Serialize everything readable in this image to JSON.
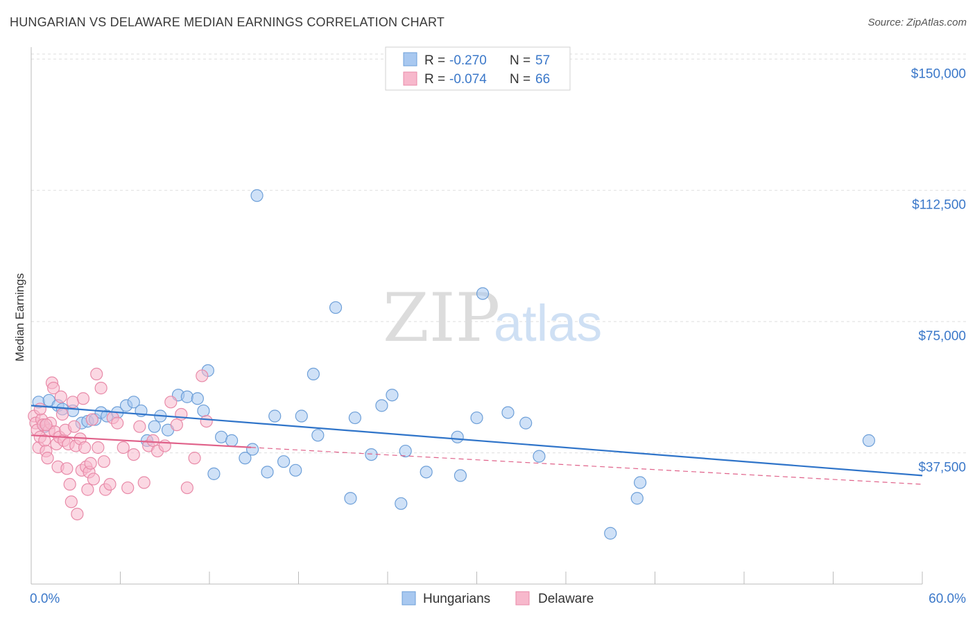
{
  "title": "HUNGARIAN VS DELAWARE MEDIAN EARNINGS CORRELATION CHART",
  "source": "Source: ZipAtlas.com",
  "watermark": {
    "zip": "ZIP",
    "atlas": "atlas"
  },
  "legend": {
    "items": [
      {
        "r_label": "R =",
        "r_value": "-0.270",
        "n_label": "N =",
        "n_value": "57",
        "color": "#a8c8f0",
        "stroke": "#6d9fd8"
      },
      {
        "r_label": "R =",
        "r_value": "-0.074",
        "n_label": "N =",
        "n_value": "66",
        "color": "#f7b8cc",
        "stroke": "#e88aa8"
      }
    ]
  },
  "bottom_legend": {
    "items": [
      {
        "label": "Hungarians"
      },
      {
        "label": "Delaware"
      }
    ]
  },
  "chart_data": {
    "type": "scatter",
    "title": "HUNGARIAN VS DELAWARE MEDIAN EARNINGS CORRELATION CHART",
    "xlabel": "",
    "ylabel": "Median Earnings",
    "xlim": [
      0,
      60
    ],
    "ylim": [
      0,
      155000
    ],
    "x_tick_labels": [
      "0.0%",
      "60.0%"
    ],
    "y_ticks": [
      37500,
      75000,
      112500,
      150000
    ],
    "y_tick_labels": [
      "$37,500",
      "$75,000",
      "$112,500",
      "$150,000"
    ],
    "grid": true,
    "series": [
      {
        "name": "Hungarians",
        "color": "#a8c8f0",
        "stroke": "#6d9fd8",
        "trend": {
          "x0": 0,
          "y0": 51000,
          "x1": 60,
          "y1": 31000,
          "color": "#2f74c9",
          "dashed_from": null
        },
        "points": [
          [
            0.5,
            52000
          ],
          [
            1.2,
            52500
          ],
          [
            1.8,
            51000
          ],
          [
            2.1,
            50000
          ],
          [
            2.8,
            49500
          ],
          [
            3.4,
            46000
          ],
          [
            3.8,
            46500
          ],
          [
            4.3,
            47000
          ],
          [
            4.7,
            49000
          ],
          [
            5.1,
            48000
          ],
          [
            5.8,
            49000
          ],
          [
            6.4,
            51000
          ],
          [
            6.9,
            52000
          ],
          [
            7.4,
            49500
          ],
          [
            7.8,
            41000
          ],
          [
            8.3,
            45000
          ],
          [
            8.7,
            48000
          ],
          [
            9.2,
            44000
          ],
          [
            9.9,
            54000
          ],
          [
            10.5,
            53500
          ],
          [
            11.2,
            53000
          ],
          [
            11.6,
            49500
          ],
          [
            11.9,
            61000
          ],
          [
            12.3,
            31500
          ],
          [
            12.8,
            42000
          ],
          [
            13.5,
            41000
          ],
          [
            14.4,
            36000
          ],
          [
            14.9,
            38500
          ],
          [
            15.2,
            111000
          ],
          [
            15.9,
            32000
          ],
          [
            16.4,
            48000
          ],
          [
            17.0,
            35000
          ],
          [
            17.8,
            32500
          ],
          [
            18.2,
            48000
          ],
          [
            19.0,
            60000
          ],
          [
            19.3,
            42500
          ],
          [
            20.5,
            79000
          ],
          [
            21.5,
            24500
          ],
          [
            21.8,
            47500
          ],
          [
            22.9,
            37000
          ],
          [
            23.6,
            51000
          ],
          [
            24.3,
            54000
          ],
          [
            24.9,
            23000
          ],
          [
            25.2,
            38000
          ],
          [
            26.6,
            32000
          ],
          [
            28.7,
            42000
          ],
          [
            28.9,
            31000
          ],
          [
            30.0,
            47500
          ],
          [
            30.4,
            83000
          ],
          [
            32.1,
            49000
          ],
          [
            33.3,
            46000
          ],
          [
            34.2,
            36500
          ],
          [
            39.0,
            14500
          ],
          [
            40.8,
            24500
          ],
          [
            41.0,
            29000
          ],
          [
            56.4,
            41000
          ],
          [
            0.9,
            45000
          ]
        ]
      },
      {
        "name": "Delaware",
        "color": "#f7b8cc",
        "stroke": "#e88aa8",
        "trend": {
          "x0": 0,
          "y0": 42500,
          "x1": 60,
          "y1": 28500,
          "color": "#e0628a",
          "solid_until": 14.8
        },
        "points": [
          [
            0.2,
            48000
          ],
          [
            0.3,
            46000
          ],
          [
            0.4,
            44000
          ],
          [
            0.5,
            39000
          ],
          [
            0.6,
            42000
          ],
          [
            0.7,
            47000
          ],
          [
            0.8,
            45500
          ],
          [
            0.9,
            41000
          ],
          [
            1.0,
            38000
          ],
          [
            1.1,
            36000
          ],
          [
            1.2,
            44000
          ],
          [
            1.3,
            46000
          ],
          [
            1.4,
            57500
          ],
          [
            1.5,
            56000
          ],
          [
            1.6,
            43500
          ],
          [
            1.7,
            40000
          ],
          [
            1.8,
            33500
          ],
          [
            1.9,
            42000
          ],
          [
            2.0,
            53500
          ],
          [
            2.1,
            48500
          ],
          [
            2.2,
            41000
          ],
          [
            2.3,
            44000
          ],
          [
            2.4,
            33000
          ],
          [
            2.5,
            40000
          ],
          [
            2.6,
            28500
          ],
          [
            2.7,
            23500
          ],
          [
            2.8,
            52000
          ],
          [
            2.9,
            45000
          ],
          [
            3.0,
            39500
          ],
          [
            3.1,
            20000
          ],
          [
            3.3,
            41500
          ],
          [
            3.4,
            32500
          ],
          [
            3.5,
            53000
          ],
          [
            3.6,
            39000
          ],
          [
            3.7,
            33500
          ],
          [
            3.8,
            27000
          ],
          [
            3.9,
            32000
          ],
          [
            4.0,
            34500
          ],
          [
            4.1,
            47000
          ],
          [
            4.2,
            30000
          ],
          [
            4.4,
            60000
          ],
          [
            4.5,
            39000
          ],
          [
            4.7,
            56000
          ],
          [
            4.9,
            35000
          ],
          [
            5.0,
            27000
          ],
          [
            5.3,
            28500
          ],
          [
            5.5,
            47500
          ],
          [
            5.8,
            46000
          ],
          [
            6.2,
            39000
          ],
          [
            6.5,
            27500
          ],
          [
            6.9,
            37000
          ],
          [
            7.3,
            45000
          ],
          [
            7.6,
            29000
          ],
          [
            7.9,
            39500
          ],
          [
            8.2,
            41000
          ],
          [
            8.5,
            38000
          ],
          [
            9.0,
            39500
          ],
          [
            9.4,
            52000
          ],
          [
            9.8,
            45500
          ],
          [
            10.1,
            48500
          ],
          [
            10.5,
            27500
          ],
          [
            11.0,
            36000
          ],
          [
            11.5,
            59500
          ],
          [
            11.8,
            46500
          ],
          [
            0.6,
            50000
          ],
          [
            1.0,
            45500
          ]
        ]
      }
    ]
  }
}
